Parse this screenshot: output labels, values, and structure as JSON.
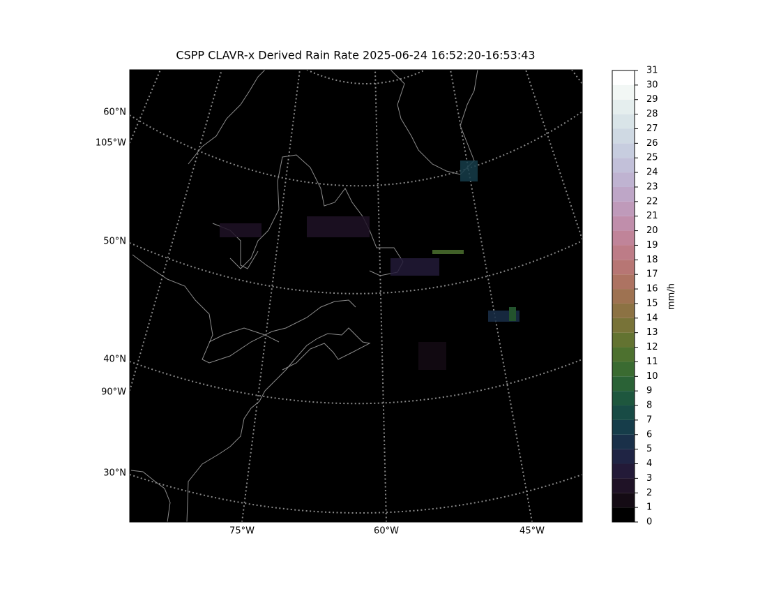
{
  "title": "CSPP CLAVR-x Derived Rain Rate 2025-06-24 16:52:20-16:53:43",
  "map": {
    "lat_labels": [
      "60°N",
      "105°W",
      "50°N",
      "40°N",
      "90°W",
      "30°N"
    ],
    "lon_labels": [
      "75°W",
      "60°W",
      "45°W"
    ]
  },
  "colorbar": {
    "label": "mm/h",
    "lim": [
      0,
      31
    ],
    "ticks": [
      0,
      1,
      2,
      3,
      4,
      5,
      6,
      7,
      8,
      9,
      10,
      11,
      12,
      13,
      14,
      15,
      16,
      17,
      18,
      19,
      20,
      21,
      22,
      23,
      24,
      25,
      26,
      27,
      28,
      29,
      30,
      31
    ],
    "colors": [
      "#000000",
      "#140b14",
      "#1f1226",
      "#231a38",
      "#1f2444",
      "#1a3049",
      "#163d4a",
      "#184b45",
      "#1e573e",
      "#2a6236",
      "#3a6b31",
      "#4d712f",
      "#637331",
      "#787338",
      "#8c7243",
      "#9e7251",
      "#ad7362",
      "#b77674",
      "#bd7c87",
      "#c08499",
      "#c08eab",
      "#bf9aba",
      "#bea6c7",
      "#bfb3d1",
      "#c2c0d9",
      "#c7cddf",
      "#cfd9e3",
      "#d9e4e8",
      "#e5eeee",
      "#f2f7f5",
      "#ffffff"
    ]
  }
}
